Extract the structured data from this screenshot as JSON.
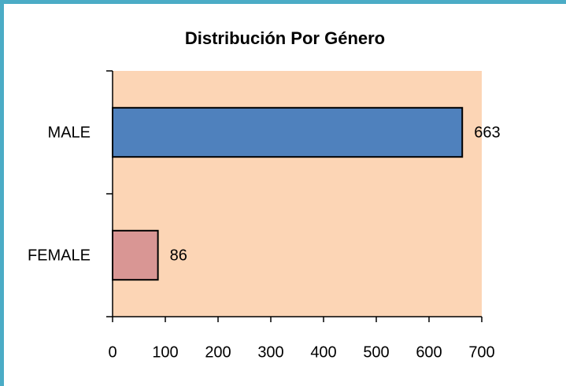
{
  "chart_data": {
    "type": "bar",
    "orientation": "horizontal",
    "title": "Distribución Por Género",
    "categories": [
      "MALE",
      "FEMALE"
    ],
    "values": [
      663,
      86
    ],
    "colors": [
      "#4F81BD",
      "#D99694"
    ],
    "xlim": [
      0,
      700
    ],
    "xticks": [
      0,
      100,
      200,
      300,
      400,
      500,
      600,
      700
    ],
    "grid": false,
    "plot_background": "#FCD5B5"
  }
}
